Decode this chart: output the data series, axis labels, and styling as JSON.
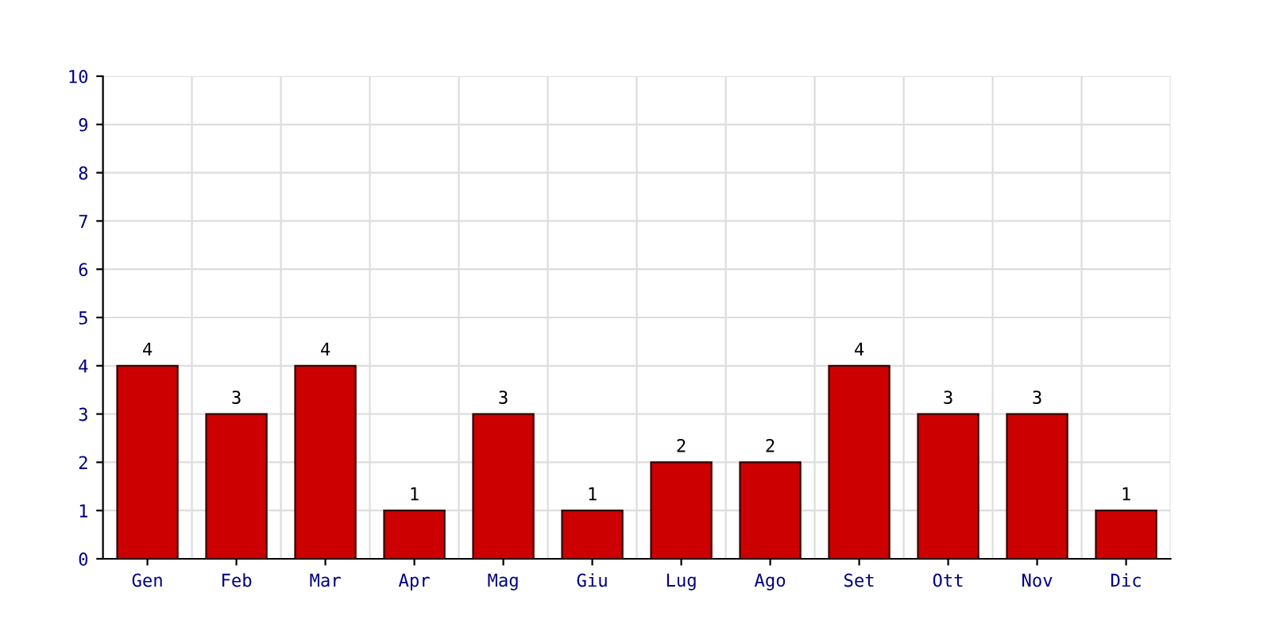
{
  "chart_data": {
    "type": "bar",
    "categories": [
      "Gen",
      "Feb",
      "Mar",
      "Apr",
      "Mag",
      "Giu",
      "Lug",
      "Ago",
      "Set",
      "Ott",
      "Nov",
      "Dic"
    ],
    "values": [
      4,
      3,
      4,
      1,
      3,
      1,
      2,
      2,
      4,
      3,
      3,
      1
    ],
    "color": "#cc0000",
    "ylim": [
      0,
      10
    ],
    "yticks": [
      0,
      1,
      2,
      3,
      4,
      5,
      6,
      7,
      8,
      9,
      10
    ],
    "grid": true,
    "data_labels": true
  }
}
